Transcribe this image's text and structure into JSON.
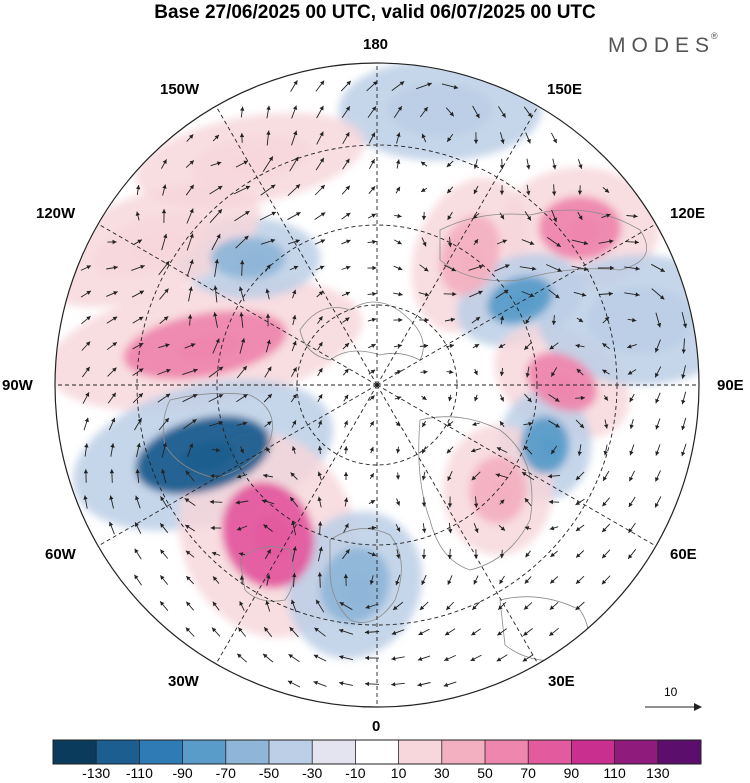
{
  "title": "Base 27/06/2025 00 UTC, valid 06/07/2025 00 UTC",
  "brand": "MODES",
  "brand_mark": "®",
  "longitude_labels": {
    "top": "180",
    "top_left": "150W",
    "top_right": "150E",
    "upper_left": "120W",
    "upper_right": "120E",
    "left": "90W",
    "right": "90E",
    "lower_left": "60W",
    "lower_right": "60E",
    "bottom_left": "30W",
    "bottom_right": "30E",
    "bottom": "0"
  },
  "vector_legend": {
    "value": "10"
  },
  "colorbar": {
    "ticks": [
      "-130",
      "-110",
      "-90",
      "-70",
      "-50",
      "-30",
      "-10",
      "10",
      "30",
      "50",
      "70",
      "90",
      "110",
      "130"
    ],
    "colors": [
      "#0b3b5c",
      "#1b5e8f",
      "#2f7bb6",
      "#5a9cc9",
      "#8fb6d8",
      "#bccfe6",
      "#e4e3f0",
      "#ffffff",
      "#f7d7dc",
      "#f3b0c1",
      "#ee86ad",
      "#e35a9f",
      "#c92f8e",
      "#8f1b7c",
      "#5b0e6b"
    ]
  },
  "map": {
    "anomaly_centers": [
      {
        "value": 70,
        "color": "#ee86ad"
      },
      {
        "value": -110,
        "color": "#1b5e8f"
      },
      {
        "value": 90,
        "color": "#e35a9f"
      },
      {
        "value": -50,
        "color": "#8fb6d8"
      },
      {
        "value": 50,
        "color": "#f3b0c1"
      },
      {
        "value": 70,
        "color": "#ee86ad"
      },
      {
        "value": -70,
        "color": "#5a9cc9"
      },
      {
        "value": 70,
        "color": "#ee86ad"
      },
      {
        "value": -70,
        "color": "#5a9cc9"
      },
      {
        "value": 50,
        "color": "#f3b0c1"
      },
      {
        "value": -50,
        "color": "#8fb6d8"
      },
      {
        "value": 30,
        "color": "#f7d7dc"
      },
      {
        "value": -30,
        "color": "#bccfe6"
      },
      {
        "value": -30,
        "color": "#bccfe6"
      },
      {
        "value": 30,
        "color": "#f7d7dc"
      }
    ]
  }
}
